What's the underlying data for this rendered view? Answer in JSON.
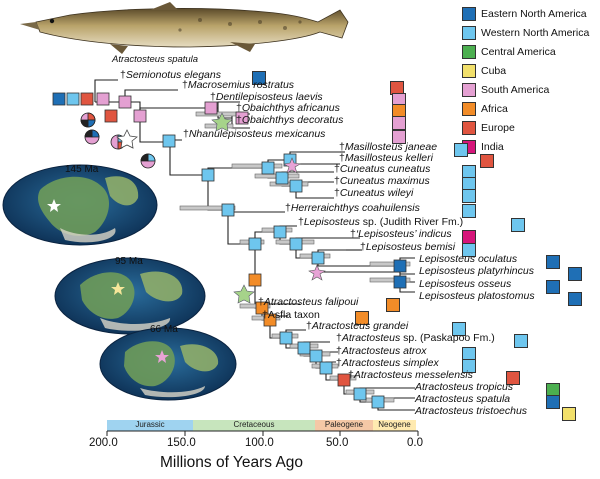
{
  "fish": {
    "caption": "Atractosteus spatula"
  },
  "legend": [
    {
      "label": "Eastern North America",
      "color": "#1f6fb5"
    },
    {
      "label": "Western North America",
      "color": "#6ec6ee"
    },
    {
      "label": "Central America",
      "color": "#4caf50"
    },
    {
      "label": "Cuba",
      "color": "#f2e06b"
    },
    {
      "label": "South America",
      "color": "#e4a0d2"
    },
    {
      "label": "Africa",
      "color": "#f28c28"
    },
    {
      "label": "Europe",
      "color": "#e05540"
    },
    {
      "label": "India",
      "color": "#d6157a"
    }
  ],
  "maps": [
    {
      "label": "145 Ma"
    },
    {
      "label": "95 Ma"
    },
    {
      "label": "66 Ma"
    }
  ],
  "axis": {
    "title": "Millions of Years Ago",
    "ticks": [
      "200.0",
      "150.0",
      "100.0",
      "50.0",
      "0.0"
    ],
    "periods": [
      "Jurassic",
      "Cretaceous",
      "Paleogene",
      "Neogene"
    ]
  },
  "taxa": [
    {
      "name": "Semionotus elegans",
      "dagger": true,
      "color": "#1f6fb5"
    },
    {
      "name": "Macrosemius rostratus",
      "dagger": true,
      "color": "#e05540"
    },
    {
      "name": "Dentilepisosteus laevis",
      "dagger": true,
      "color": "#e4a0d2"
    },
    {
      "name": "Obaichthys africanus",
      "dagger": true,
      "color": "#f28c28"
    },
    {
      "name": "Obaichthys decoratus",
      "dagger": true,
      "color": "#e4a0d2"
    },
    {
      "name": "Nhanulepisosteus mexicanus",
      "dagger": true,
      "color": "#e4a0d2"
    },
    {
      "name": "Masillosteus janeae",
      "dagger": true,
      "color": "#6ec6ee"
    },
    {
      "name": "Masillosteus kelleri",
      "dagger": true,
      "color": "#e05540"
    },
    {
      "name": "Cuneatus cuneatus",
      "dagger": true,
      "color": "#6ec6ee"
    },
    {
      "name": "Cuneatus maximus",
      "dagger": true,
      "color": "#6ec6ee"
    },
    {
      "name": "Cuneatus wileyi",
      "dagger": true,
      "color": "#6ec6ee"
    },
    {
      "name": "Herreraichthys coahuilensis",
      "dagger": true,
      "color": "#6ec6ee"
    },
    {
      "name": "Lepisosteus",
      "dagger": true,
      "suffix": " sp. (Judith River Fm.)",
      "color": "#6ec6ee"
    },
    {
      "name": "‘Lepisosteus’ indicus",
      "dagger": true,
      "color": "#d6157a"
    },
    {
      "name": "Lepisosteus bemisi",
      "dagger": true,
      "color": "#6ec6ee"
    },
    {
      "name": "Lepisosteus oculatus",
      "dagger": false,
      "color": "#1f6fb5"
    },
    {
      "name": "Lepisosteus platyrhincus",
      "dagger": false,
      "color": "#1f6fb5"
    },
    {
      "name": "Lepisosteus osseus",
      "dagger": false,
      "color": "#1f6fb5"
    },
    {
      "name": "Lepisosteus platostomus",
      "dagger": false,
      "color": "#1f6fb5"
    },
    {
      "name": "Atractosteus falipoui",
      "dagger": true,
      "color": "#f28c28"
    },
    {
      "name": "Asfla taxon",
      "dagger": true,
      "upright": true,
      "color": "#f28c28"
    },
    {
      "name": "Atractosteus grandei",
      "dagger": true,
      "color": "#6ec6ee"
    },
    {
      "name": "Atractosteus",
      "dagger": true,
      "suffix": " sp. (Paskapoo Fm.)",
      "color": "#6ec6ee"
    },
    {
      "name": "Atractosteus atrox",
      "dagger": true,
      "color": "#6ec6ee"
    },
    {
      "name": "Atractosteus simplex",
      "dagger": true,
      "color": "#6ec6ee"
    },
    {
      "name": "Atractosteus messelensis",
      "dagger": true,
      "color": "#e05540"
    },
    {
      "name": "Atractosteus tropicus",
      "dagger": false,
      "color": "#4caf50"
    },
    {
      "name": "Atractosteus spatula",
      "dagger": false,
      "color": "#1f6fb5"
    },
    {
      "name": "Atractosteus tristoechus",
      "dagger": false,
      "color": "#f2e06b"
    }
  ]
}
